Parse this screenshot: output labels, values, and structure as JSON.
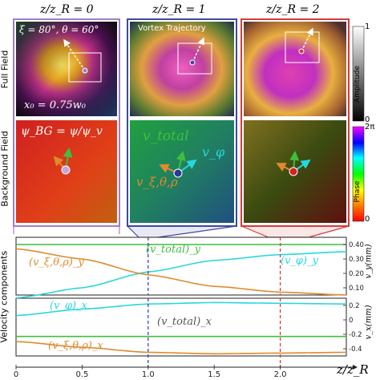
{
  "figure": {
    "columns": [
      {
        "title": "z/z_R = 0",
        "frame_color": "#9f7fc6"
      },
      {
        "title": "z/z_R = 1",
        "frame_color": "#3e4a9e"
      },
      {
        "title": "z/z_R = 2",
        "frame_color": "#d93a3a"
      }
    ],
    "row_labels": {
      "full_field": "Full Field",
      "background_field": "Background Field",
      "velocity": "Velocity components"
    },
    "annotations": {
      "angles": "ξ = 80°, θ = 60°",
      "x0": "x₀ = 0.75w₀",
      "vortex_trajectory": "Vortex Trajectory",
      "psi_bg": "ψ_BG = ψ/ψ_v",
      "v_total": "v_total",
      "v_phi": "v_φ",
      "v_xi": "v_ξ,θ,ρ"
    },
    "colorbars": {
      "amplitude": {
        "label": "Amplitude",
        "max": "1",
        "min": "0"
      },
      "phase": {
        "label": "Phase",
        "max": "2π",
        "min": "0"
      }
    },
    "axis": {
      "xlabel": "z/z_R",
      "xticks": [
        "0",
        "0.5",
        "1.0",
        "1.5",
        "2.0"
      ],
      "vy_label": "v_y(mm)",
      "vx_label": "v_x(mm)",
      "vy_ticks": [
        "0.40",
        "0.30",
        "0.20",
        "0.10"
      ],
      "vx_ticks": [
        "0.2",
        "0",
        "-0.2",
        "-0.4"
      ]
    },
    "curve_labels": {
      "vy_xi": "(v_ξ,θ,ρ)_y",
      "vy_total": "(v_total)_y",
      "vy_phi": "(v_φ)_y",
      "vx_phi": "(v_φ)_x",
      "vx_total": "(v_total)_x",
      "vx_xi": "(v_ξ,θ,ρ)_x"
    },
    "colors": {
      "total": "#3fbf3f",
      "phi": "#28d7dd",
      "xi": "#e08a2c"
    }
  },
  "chart_data": [
    {
      "type": "line",
      "title": "",
      "xlabel": "z/z_R",
      "ylabel": "v_y(mm)",
      "xlim": [
        0,
        2.5
      ],
      "ylim": [
        0.05,
        0.45
      ],
      "series": [
        {
          "name": "(v_total)_y",
          "x": [
            0,
            0.5,
            1.0,
            1.5,
            2.0,
            2.5
          ],
          "values": [
            0.4,
            0.4,
            0.4,
            0.4,
            0.4,
            0.4
          ]
        },
        {
          "name": "(v_φ)_y",
          "x": [
            0,
            0.5,
            1.0,
            1.5,
            2.0,
            2.5
          ],
          "values": [
            0.03,
            0.1,
            0.21,
            0.29,
            0.33,
            0.35
          ]
        },
        {
          "name": "(v_ξ,θ,ρ)_y",
          "x": [
            0,
            0.5,
            1.0,
            1.5,
            2.0,
            2.5
          ],
          "values": [
            0.37,
            0.3,
            0.19,
            0.11,
            0.07,
            0.05
          ]
        }
      ]
    },
    {
      "type": "line",
      "title": "",
      "xlabel": "z/z_R",
      "ylabel": "v_x(mm)",
      "xlim": [
        0,
        2.5
      ],
      "ylim": [
        -0.5,
        0.3
      ],
      "series": [
        {
          "name": "(v_φ)_x",
          "x": [
            0,
            0.5,
            1.0,
            1.5,
            2.0,
            2.5
          ],
          "values": [
            0.06,
            0.15,
            0.22,
            0.24,
            0.23,
            0.22
          ]
        },
        {
          "name": "(v_total)_x",
          "x": [
            0,
            0.5,
            1.0,
            1.5,
            2.0,
            2.5
          ],
          "values": [
            -0.23,
            -0.23,
            -0.23,
            -0.23,
            -0.23,
            -0.23
          ]
        },
        {
          "name": "(v_ξ,θ,ρ)_x",
          "x": [
            0,
            0.5,
            1.0,
            1.5,
            2.0,
            2.5
          ],
          "values": [
            -0.3,
            -0.38,
            -0.45,
            -0.47,
            -0.46,
            -0.45
          ]
        }
      ]
    }
  ]
}
